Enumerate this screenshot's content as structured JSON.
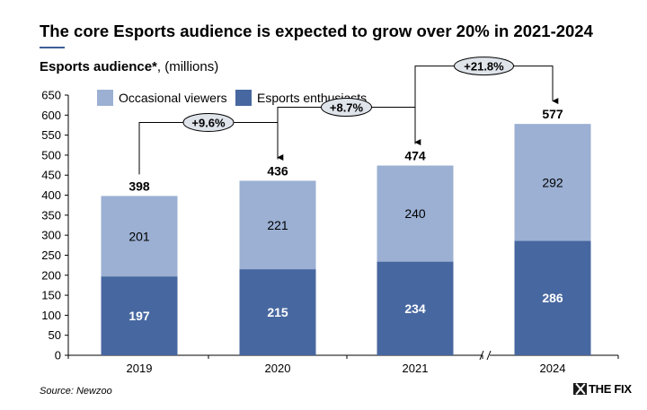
{
  "header": {
    "title": "The core Esports audience is expected to grow over 20% in 2021-2024",
    "subtitle_bold": "Esports audience*",
    "subtitle_rest": ", (millions)"
  },
  "footer": {
    "source": "Source: Newzoo",
    "logo_text": "THE FIX"
  },
  "chart_data": {
    "type": "bar",
    "stacked": true,
    "categories": [
      "2019",
      "2020",
      "2021",
      "2024"
    ],
    "series": [
      {
        "name": "Esports enthusiasts",
        "values": [
          197,
          215,
          234,
          286
        ],
        "color": "#4767a0"
      },
      {
        "name": "Occasional viewers",
        "values": [
          201,
          221,
          240,
          292
        ],
        "color": "#9bb0d3"
      }
    ],
    "totals": [
      398,
      436,
      474,
      577
    ],
    "growth_annotations": [
      {
        "from": "2019",
        "to": "2020",
        "label": "+9.6%"
      },
      {
        "from": "2020",
        "to": "2021",
        "label": "+8.7%"
      },
      {
        "from": "2021",
        "to": "2024",
        "label": "+21.8%"
      }
    ],
    "ylim": [
      0,
      650
    ],
    "yticks": [
      0,
      50,
      100,
      150,
      200,
      250,
      300,
      350,
      400,
      450,
      500,
      550,
      600,
      650
    ],
    "axis_break": "between 2021 and 2024",
    "legend_position": "top-left",
    "legend_order": [
      "Occasional viewers",
      "Esports enthusiasts"
    ],
    "grid": false
  }
}
